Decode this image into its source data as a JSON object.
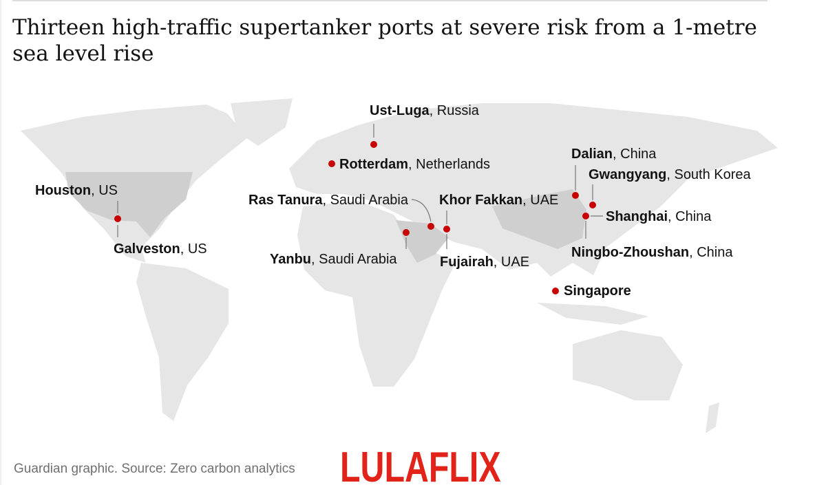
{
  "title": "Thirteen high-traffic supertanker ports at severe risk from a 1-metre sea level rise",
  "ports": [
    {
      "name": "Ust-Luga",
      "rest": ", Russia"
    },
    {
      "name": "Rotterdam",
      "rest": ", Netherlands"
    },
    {
      "name": "Houston",
      "rest": ", US"
    },
    {
      "name": "Galveston",
      "rest": ", US"
    },
    {
      "name": "Ras Tanura",
      "rest": ", Saudi Arabia"
    },
    {
      "name": "Khor Fakkan",
      "rest": ", UAE"
    },
    {
      "name": "Yanbu",
      "rest": ", Saudi Arabia"
    },
    {
      "name": "Fujairah",
      "rest": ", UAE"
    },
    {
      "name": "Dalian",
      "rest": ", China"
    },
    {
      "name": "Gwangyang",
      "rest": ", South Korea"
    },
    {
      "name": "Shanghai",
      "rest": ", China"
    },
    {
      "name": "Ningbo-Zhoushan",
      "rest": ", China"
    },
    {
      "name": "Singapore"
    }
  ],
  "source": "Guardian graphic. Source: Zero carbon analytics",
  "watermark": "LULAFLIX"
}
